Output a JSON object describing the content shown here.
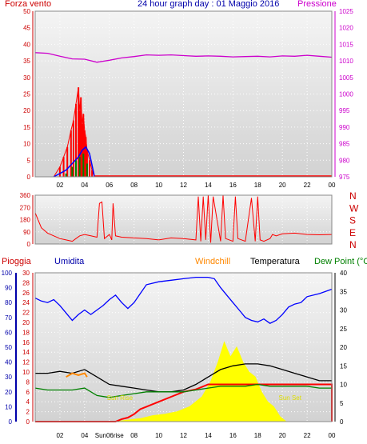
{
  "header": {
    "left_label": "Forza vento",
    "title": "24 hour graph day : 01 Maggio 2016",
    "right_label": "Pressione"
  },
  "legend": {
    "pioggia": "Pioggia",
    "umidita": "Umidita",
    "windchill": "Windchill",
    "temperatura": "Temperatura",
    "dewpoint": "Dew Point (°C"
  },
  "colors": {
    "wind_gust": "#ff0000",
    "wind_avg": "#0000ff",
    "wind_green": "#008000",
    "pressure": "#cc00cc",
    "direction": "#ff0000",
    "humidity": "#0000ff",
    "temperature": "#000000",
    "dewpoint": "#008000",
    "windchill": "#ff8800",
    "rain_total": "#ff0000",
    "solar": "#ffff00",
    "axis_red": "#cc0000",
    "axis_blue": "#0000aa"
  },
  "x_ticks": [
    "02",
    "04",
    "Sun06rise",
    "08",
    "10",
    "12",
    "14",
    "16",
    "18",
    "20",
    "22",
    "00"
  ],
  "chart_data": [
    {
      "type": "line",
      "name": "wind_pressure",
      "y_left_ticks": [
        "0",
        "5",
        "10",
        "15",
        "20",
        "25",
        "30",
        "35",
        "40",
        "45",
        "50"
      ],
      "y_right_ticks": [
        "975",
        "980",
        "985",
        "990",
        "995",
        "1000",
        "1005",
        "1010",
        "1015",
        "1020",
        "1025"
      ],
      "x_ticks": [
        "02",
        "04",
        "06",
        "08",
        "10",
        "12",
        "14",
        "16",
        "18",
        "20",
        "22",
        "00"
      ],
      "ylim_left": [
        0,
        50
      ],
      "ylim_right": [
        975,
        1025
      ],
      "pressure": {
        "x": [
          0,
          1,
          2,
          3,
          4,
          5,
          6,
          7,
          8,
          9,
          10,
          11,
          12,
          13,
          14,
          15,
          16,
          17,
          18,
          19,
          20,
          21,
          22,
          23,
          24
        ],
        "y": [
          1012.5,
          1012.3,
          1011.4,
          1010.6,
          1010.5,
          1009.6,
          1010.2,
          1010.9,
          1011.3,
          1011.8,
          1011.7,
          1011.8,
          1011.6,
          1011.4,
          1011.5,
          1011.4,
          1011.2,
          1011.3,
          1011.4,
          1011.2,
          1011.5,
          1011.4,
          1011.7,
          1011.4,
          1011.1
        ]
      },
      "wind_gust": {
        "x": [
          1.5,
          2.0,
          2.3,
          2.6,
          2.9,
          3.1,
          3.3,
          3.5,
          3.6,
          3.7,
          3.8,
          3.9,
          4.0,
          4.1,
          4.2,
          4.4,
          4.6,
          4.8
        ],
        "y": [
          0,
          3,
          6,
          9,
          14,
          17,
          22,
          27,
          20,
          24,
          16,
          19,
          14,
          12,
          8,
          5,
          2,
          0
        ]
      },
      "wind_avg": {
        "x": [
          1.5,
          2.5,
          3.0,
          3.5,
          3.8,
          4.1,
          4.4,
          4.8
        ],
        "y": [
          0,
          2,
          4,
          6,
          8,
          9,
          7,
          0
        ]
      },
      "wind_green": {
        "x": [
          1.5,
          2.5,
          3.0,
          3.3,
          3.6,
          3.9,
          4.2,
          4.5
        ],
        "y": [
          0,
          1,
          3,
          5,
          6,
          7,
          4,
          0
        ]
      }
    },
    {
      "type": "line",
      "name": "wind_direction",
      "y_left_ticks": [
        "360",
        "270",
        "180",
        "90",
        "0"
      ],
      "y_right_ticks": [
        "N",
        "W",
        "S",
        "E",
        "N"
      ],
      "ylim": [
        0,
        360
      ],
      "x": [
        0,
        0.5,
        1.0,
        1.5,
        2.0,
        2.5,
        3.0,
        3.3,
        3.6,
        4.0,
        4.5,
        5.0,
        5.2,
        5.4,
        5.6,
        6.0,
        6.2,
        6.3,
        6.5,
        7.0,
        8.0,
        9.0,
        10.0,
        11.0,
        12.0,
        13.0,
        13.2,
        13.4,
        13.6,
        13.8,
        14.0,
        14.2,
        14.4,
        15.0,
        15.2,
        15.4,
        16.0,
        16.2,
        16.4,
        17.0,
        17.5,
        17.8,
        18.0,
        18.2,
        18.5,
        19.0,
        19.2,
        19.5,
        20.0,
        21.0,
        22.0,
        23.0,
        24.0
      ],
      "y": [
        230,
        120,
        80,
        60,
        40,
        30,
        20,
        40,
        60,
        70,
        60,
        50,
        300,
        310,
        40,
        70,
        30,
        300,
        60,
        50,
        45,
        40,
        30,
        45,
        40,
        30,
        350,
        20,
        350,
        30,
        360,
        10,
        350,
        20,
        360,
        40,
        20,
        350,
        40,
        20,
        340,
        20,
        350,
        30,
        20,
        40,
        70,
        60,
        75,
        80,
        70,
        68,
        70
      ]
    },
    {
      "type": "line",
      "name": "weather_main",
      "y_rain_ticks": [
        "0",
        "2",
        "4",
        "6",
        "8",
        "10",
        "12",
        "14",
        "16",
        "18",
        "20",
        "22",
        "24",
        "26",
        "28",
        "30"
      ],
      "y_hum_ticks": [
        "0",
        "10",
        "20",
        "30",
        "40",
        "50",
        "60",
        "70",
        "80",
        "90",
        "100"
      ],
      "y_temp_ticks": [
        "0",
        "5",
        "10",
        "15",
        "20",
        "25",
        "30",
        "35",
        "40"
      ],
      "ylim_rain": [
        0,
        30
      ],
      "ylim_hum": [
        0,
        100
      ],
      "ylim_temp": [
        0,
        40
      ],
      "annotations": [
        "Sun Rise",
        "Sun Set"
      ],
      "humidity": {
        "x": [
          0,
          0.5,
          1.0,
          1.5,
          2.0,
          2.5,
          3.0,
          3.5,
          4.0,
          4.5,
          5.0,
          5.5,
          6.0,
          6.5,
          7.0,
          7.5,
          8.0,
          8.5,
          9.0,
          10.0,
          11.0,
          12.0,
          13.0,
          14.0,
          14.5,
          15.0,
          15.5,
          16.0,
          16.5,
          17.0,
          17.5,
          18.0,
          18.5,
          19.0,
          19.5,
          20.0,
          20.5,
          21.0,
          21.5,
          22.0,
          23.0,
          24.0
        ],
        "y": [
          83,
          81,
          80,
          82,
          78,
          73,
          68,
          72,
          75,
          72,
          75,
          78,
          82,
          85,
          80,
          76,
          80,
          86,
          92,
          94,
          95,
          96,
          97,
          97,
          96,
          90,
          85,
          80,
          75,
          70,
          68,
          67,
          69,
          66,
          68,
          72,
          77,
          79,
          80,
          84,
          86,
          89
        ]
      },
      "temperature": {
        "x": [
          0,
          1,
          2,
          3,
          4,
          5,
          6,
          7,
          8,
          9,
          10,
          11,
          12,
          13,
          14,
          15,
          16,
          17,
          18,
          19,
          20,
          21,
          22,
          23,
          24
        ],
        "y": [
          13,
          13,
          13.5,
          13,
          14,
          12,
          10,
          9.5,
          9,
          8.5,
          8,
          8,
          8.5,
          10,
          12,
          14,
          15,
          15.5,
          15.5,
          15,
          14,
          13,
          12,
          11,
          11
        ]
      },
      "dewpoint": {
        "x": [
          0,
          1,
          2,
          3,
          4,
          5,
          6,
          7,
          8,
          9,
          10,
          11,
          12,
          13,
          14,
          15,
          16,
          17,
          18,
          19,
          20,
          21,
          22,
          23,
          24
        ],
        "y": [
          9,
          8.5,
          8.5,
          8.5,
          9,
          7,
          6.5,
          7,
          7.5,
          8,
          8,
          8,
          8,
          8.5,
          9,
          9.5,
          9.5,
          9.5,
          10,
          9.5,
          9.5,
          9.5,
          9.5,
          9,
          9
        ]
      },
      "windchill": {
        "x": [
          2.5,
          3.0,
          3.5,
          4.0,
          4.2
        ],
        "y": [
          12,
          13,
          12.5,
          13,
          12
        ]
      },
      "rain_total": {
        "x": [
          0,
          6.5,
          7.0,
          7.5,
          8.0,
          8.5,
          9.0,
          10.0,
          11.0,
          12.0,
          13.0,
          14.0,
          15.0,
          16.0,
          17.0,
          18.0,
          19.0,
          20.0,
          21.0,
          22.0,
          23.0,
          24.0,
          24.0
        ],
        "y": [
          0,
          0,
          0.5,
          0.8,
          1.5,
          2.5,
          3,
          4,
          5,
          6,
          6.5,
          7.5,
          7.5,
          7.5,
          7.5,
          7.5,
          7.5,
          7.5,
          7.5,
          7.5,
          7.5,
          7.5,
          0
        ]
      },
      "solar": {
        "x": [
          6.5,
          7.5,
          8.5,
          9.5,
          10.5,
          11.5,
          12.5,
          13.5,
          14.2,
          14.8,
          15.3,
          15.8,
          16.3,
          16.8,
          17.3,
          17.8,
          18.3,
          18.8,
          19.3,
          19.8,
          20.3
        ],
        "y": [
          0,
          0.3,
          0.6,
          1.2,
          1.5,
          2.0,
          3,
          5,
          8,
          12,
          16,
          13,
          15,
          12,
          10,
          9,
          6,
          4,
          3,
          1,
          0
        ]
      }
    }
  ]
}
